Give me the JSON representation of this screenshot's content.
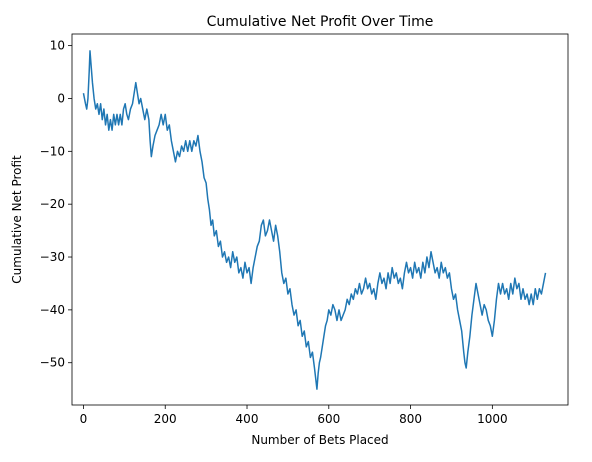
{
  "chart_data": {
    "type": "line",
    "title": "Cumulative Net Profit Over Time",
    "xlabel": "Number of Bets Placed",
    "ylabel": "Cumulative Net Profit",
    "xlim": [
      -28,
      1185
    ],
    "ylim": [
      -58,
      12.2
    ],
    "xticks": [
      0,
      200,
      400,
      600,
      800,
      1000
    ],
    "yticks": [
      10,
      0,
      -10,
      -20,
      -30,
      -40,
      -50
    ],
    "grid": false,
    "series": [
      {
        "color": "#1f77b4",
        "points": [
          [
            0,
            1
          ],
          [
            5,
            -1
          ],
          [
            8,
            -2
          ],
          [
            11,
            0
          ],
          [
            14,
            5
          ],
          [
            16,
            9
          ],
          [
            19,
            6
          ],
          [
            22,
            3
          ],
          [
            26,
            0
          ],
          [
            30,
            -2
          ],
          [
            34,
            -1
          ],
          [
            38,
            -3
          ],
          [
            42,
            -1
          ],
          [
            46,
            -4
          ],
          [
            50,
            -2
          ],
          [
            54,
            -5
          ],
          [
            58,
            -3
          ],
          [
            62,
            -6
          ],
          [
            66,
            -4
          ],
          [
            70,
            -6
          ],
          [
            74,
            -3
          ],
          [
            78,
            -5
          ],
          [
            82,
            -3
          ],
          [
            86,
            -5
          ],
          [
            90,
            -3
          ],
          [
            94,
            -5
          ],
          [
            98,
            -2
          ],
          [
            102,
            -1
          ],
          [
            106,
            -3
          ],
          [
            110,
            -4
          ],
          [
            115,
            -2
          ],
          [
            120,
            -1
          ],
          [
            124,
            1
          ],
          [
            128,
            3
          ],
          [
            132,
            1
          ],
          [
            136,
            -1
          ],
          [
            140,
            0
          ],
          [
            145,
            -2
          ],
          [
            150,
            -4
          ],
          [
            155,
            -2
          ],
          [
            160,
            -4
          ],
          [
            163,
            -8
          ],
          [
            166,
            -11
          ],
          [
            170,
            -9
          ],
          [
            175,
            -7
          ],
          [
            180,
            -6
          ],
          [
            185,
            -5
          ],
          [
            190,
            -3
          ],
          [
            195,
            -5
          ],
          [
            200,
            -3
          ],
          [
            205,
            -6
          ],
          [
            210,
            -5
          ],
          [
            215,
            -8
          ],
          [
            220,
            -10
          ],
          [
            225,
            -12
          ],
          [
            230,
            -10
          ],
          [
            235,
            -11
          ],
          [
            240,
            -9
          ],
          [
            245,
            -10
          ],
          [
            250,
            -8
          ],
          [
            255,
            -10
          ],
          [
            260,
            -8
          ],
          [
            265,
            -10
          ],
          [
            270,
            -8
          ],
          [
            275,
            -9
          ],
          [
            280,
            -7
          ],
          [
            285,
            -10
          ],
          [
            290,
            -12
          ],
          [
            295,
            -15
          ],
          [
            300,
            -16
          ],
          [
            304,
            -19
          ],
          [
            308,
            -21
          ],
          [
            312,
            -24
          ],
          [
            316,
            -23
          ],
          [
            320,
            -26
          ],
          [
            325,
            -25
          ],
          [
            330,
            -28
          ],
          [
            335,
            -27
          ],
          [
            340,
            -30
          ],
          [
            345,
            -29
          ],
          [
            350,
            -31
          ],
          [
            355,
            -30
          ],
          [
            360,
            -32
          ],
          [
            365,
            -29
          ],
          [
            370,
            -31
          ],
          [
            375,
            -30
          ],
          [
            380,
            -33
          ],
          [
            385,
            -32
          ],
          [
            390,
            -34
          ],
          [
            395,
            -31
          ],
          [
            400,
            -33
          ],
          [
            405,
            -32
          ],
          [
            410,
            -35
          ],
          [
            415,
            -32
          ],
          [
            420,
            -30
          ],
          [
            425,
            -28
          ],
          [
            430,
            -27
          ],
          [
            435,
            -24
          ],
          [
            440,
            -23
          ],
          [
            445,
            -26
          ],
          [
            450,
            -25
          ],
          [
            455,
            -23
          ],
          [
            460,
            -25
          ],
          [
            465,
            -27
          ],
          [
            470,
            -24
          ],
          [
            475,
            -26
          ],
          [
            480,
            -29
          ],
          [
            485,
            -33
          ],
          [
            490,
            -35
          ],
          [
            495,
            -34
          ],
          [
            500,
            -37
          ],
          [
            505,
            -36
          ],
          [
            510,
            -39
          ],
          [
            515,
            -41
          ],
          [
            520,
            -40
          ],
          [
            525,
            -43
          ],
          [
            530,
            -42
          ],
          [
            535,
            -45
          ],
          [
            540,
            -44
          ],
          [
            545,
            -47
          ],
          [
            550,
            -46
          ],
          [
            555,
            -49
          ],
          [
            560,
            -48
          ],
          [
            565,
            -51
          ],
          [
            568,
            -53
          ],
          [
            571,
            -55
          ],
          [
            574,
            -52
          ],
          [
            577,
            -50
          ],
          [
            580,
            -49
          ],
          [
            584,
            -47
          ],
          [
            588,
            -45
          ],
          [
            592,
            -43
          ],
          [
            596,
            -42
          ],
          [
            600,
            -40
          ],
          [
            605,
            -41
          ],
          [
            610,
            -39
          ],
          [
            615,
            -40
          ],
          [
            620,
            -42
          ],
          [
            625,
            -40
          ],
          [
            630,
            -42
          ],
          [
            635,
            -41
          ],
          [
            640,
            -40
          ],
          [
            645,
            -38
          ],
          [
            650,
            -39
          ],
          [
            655,
            -37
          ],
          [
            660,
            -38
          ],
          [
            665,
            -36
          ],
          [
            670,
            -37
          ],
          [
            675,
            -35
          ],
          [
            680,
            -37
          ],
          [
            685,
            -36
          ],
          [
            690,
            -34
          ],
          [
            695,
            -36
          ],
          [
            700,
            -35
          ],
          [
            705,
            -37
          ],
          [
            710,
            -36
          ],
          [
            715,
            -38
          ],
          [
            720,
            -35
          ],
          [
            725,
            -33
          ],
          [
            730,
            -35
          ],
          [
            735,
            -34
          ],
          [
            740,
            -36
          ],
          [
            745,
            -33
          ],
          [
            750,
            -35
          ],
          [
            755,
            -32
          ],
          [
            760,
            -34
          ],
          [
            765,
            -33
          ],
          [
            770,
            -35
          ],
          [
            775,
            -34
          ],
          [
            780,
            -36
          ],
          [
            785,
            -33
          ],
          [
            790,
            -31
          ],
          [
            795,
            -33
          ],
          [
            800,
            -32
          ],
          [
            805,
            -34
          ],
          [
            810,
            -31
          ],
          [
            815,
            -33
          ],
          [
            820,
            -32
          ],
          [
            825,
            -34
          ],
          [
            830,
            -31
          ],
          [
            835,
            -33
          ],
          [
            840,
            -30
          ],
          [
            845,
            -32
          ],
          [
            850,
            -29
          ],
          [
            855,
            -31
          ],
          [
            860,
            -33
          ],
          [
            865,
            -32
          ],
          [
            870,
            -34
          ],
          [
            875,
            -31
          ],
          [
            880,
            -33
          ],
          [
            885,
            -32
          ],
          [
            890,
            -34
          ],
          [
            895,
            -33
          ],
          [
            900,
            -36
          ],
          [
            905,
            -38
          ],
          [
            910,
            -37
          ],
          [
            915,
            -40
          ],
          [
            920,
            -42
          ],
          [
            925,
            -44
          ],
          [
            930,
            -48
          ],
          [
            933,
            -50
          ],
          [
            936,
            -51
          ],
          [
            940,
            -48
          ],
          [
            945,
            -45
          ],
          [
            950,
            -41
          ],
          [
            955,
            -38
          ],
          [
            960,
            -35
          ],
          [
            965,
            -37
          ],
          [
            970,
            -39
          ],
          [
            975,
            -41
          ],
          [
            980,
            -39
          ],
          [
            985,
            -40
          ],
          [
            990,
            -42
          ],
          [
            995,
            -43
          ],
          [
            1000,
            -45
          ],
          [
            1005,
            -42
          ],
          [
            1010,
            -38
          ],
          [
            1015,
            -35
          ],
          [
            1020,
            -37
          ],
          [
            1025,
            -35
          ],
          [
            1030,
            -37
          ],
          [
            1035,
            -36
          ],
          [
            1040,
            -38
          ],
          [
            1045,
            -35
          ],
          [
            1050,
            -37
          ],
          [
            1055,
            -34
          ],
          [
            1060,
            -36
          ],
          [
            1065,
            -35
          ],
          [
            1070,
            -38
          ],
          [
            1075,
            -36
          ],
          [
            1080,
            -38
          ],
          [
            1085,
            -37
          ],
          [
            1090,
            -39
          ],
          [
            1095,
            -37
          ],
          [
            1100,
            -39
          ],
          [
            1105,
            -36
          ],
          [
            1110,
            -38
          ],
          [
            1115,
            -36
          ],
          [
            1120,
            -37
          ],
          [
            1125,
            -35
          ],
          [
            1130,
            -33
          ]
        ]
      }
    ]
  }
}
